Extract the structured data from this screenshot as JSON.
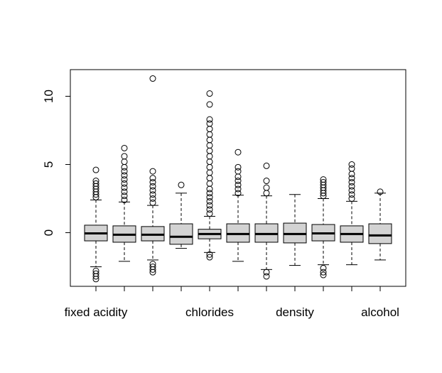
{
  "chart_data": {
    "type": "boxplot",
    "title": "",
    "xlabel": "",
    "ylabel": "",
    "ylim": [
      -4,
      12
    ],
    "yticks": [
      0,
      5,
      10
    ],
    "grid": false,
    "legend": "none",
    "box_fill": "#d3d3d3",
    "categories": [
      "fixed acidity",
      "",
      "",
      "",
      "chlorides",
      "",
      "",
      "density",
      "",
      "",
      "alcohol"
    ],
    "boxes": [
      {
        "whisker_low": -2.5,
        "q1": -0.6,
        "median": -0.05,
        "q3": 0.55,
        "whisker_high": 2.4,
        "outliers": [
          -3.4,
          -3.2,
          -3.0,
          -2.8,
          2.6,
          2.8,
          3.0,
          3.2,
          3.4,
          3.6,
          3.8,
          4.6
        ]
      },
      {
        "whisker_low": -2.1,
        "q1": -0.7,
        "median": -0.15,
        "q3": 0.5,
        "whisker_high": 2.25,
        "outliers": [
          2.4,
          2.7,
          3.0,
          3.3,
          3.6,
          3.9,
          4.2,
          4.5,
          4.8,
          5.2,
          5.6,
          6.2
        ]
      },
      {
        "whisker_low": -2.0,
        "q1": -0.6,
        "median": -0.15,
        "q3": 0.45,
        "whisker_high": 2.0,
        "outliers": [
          -2.9,
          -2.7,
          -2.5,
          -2.3,
          2.2,
          2.5,
          2.8,
          3.1,
          3.4,
          3.7,
          4.0,
          4.5,
          11.3
        ]
      },
      {
        "whisker_low": -1.15,
        "q1": -0.85,
        "median": -0.3,
        "q3": 0.65,
        "whisker_high": 2.9,
        "outliers": [
          3.5
        ]
      },
      {
        "whisker_low": -1.45,
        "q1": -0.45,
        "median": -0.1,
        "q3": 0.25,
        "whisker_high": 1.2,
        "outliers": [
          -1.8,
          -1.6,
          1.4,
          1.7,
          2.0,
          2.3,
          2.6,
          2.9,
          3.2,
          3.6,
          4.0,
          4.4,
          4.8,
          5.2,
          5.6,
          6.0,
          6.4,
          6.8,
          7.2,
          7.6,
          8.0,
          8.3,
          9.4,
          10.2
        ]
      },
      {
        "whisker_low": -2.1,
        "q1": -0.7,
        "median": -0.1,
        "q3": 0.65,
        "whisker_high": 2.75,
        "outliers": [
          2.9,
          3.2,
          3.5,
          3.8,
          4.1,
          4.5,
          4.8,
          5.9
        ]
      },
      {
        "whisker_low": -2.7,
        "q1": -0.7,
        "median": -0.1,
        "q3": 0.65,
        "whisker_high": 2.7,
        "outliers": [
          -3.2,
          -2.9,
          2.9,
          3.3,
          3.8,
          4.9
        ]
      },
      {
        "whisker_low": -2.4,
        "q1": -0.75,
        "median": -0.1,
        "q3": 0.7,
        "whisker_high": 2.8,
        "outliers": []
      },
      {
        "whisker_low": -2.35,
        "q1": -0.6,
        "median": -0.05,
        "q3": 0.6,
        "whisker_high": 2.5,
        "outliers": [
          -3.1,
          -2.9,
          -2.6,
          2.7,
          2.9,
          3.1,
          3.3,
          3.5,
          3.7,
          3.9
        ]
      },
      {
        "whisker_low": -2.35,
        "q1": -0.7,
        "median": -0.1,
        "q3": 0.5,
        "whisker_high": 2.3,
        "outliers": [
          2.5,
          2.8,
          3.1,
          3.4,
          3.7,
          4.0,
          4.3,
          4.7,
          5.0
        ]
      },
      {
        "whisker_low": -2.0,
        "q1": -0.8,
        "median": -0.2,
        "q3": 0.65,
        "whisker_high": 2.9,
        "outliers": [
          3.0
        ]
      }
    ]
  }
}
